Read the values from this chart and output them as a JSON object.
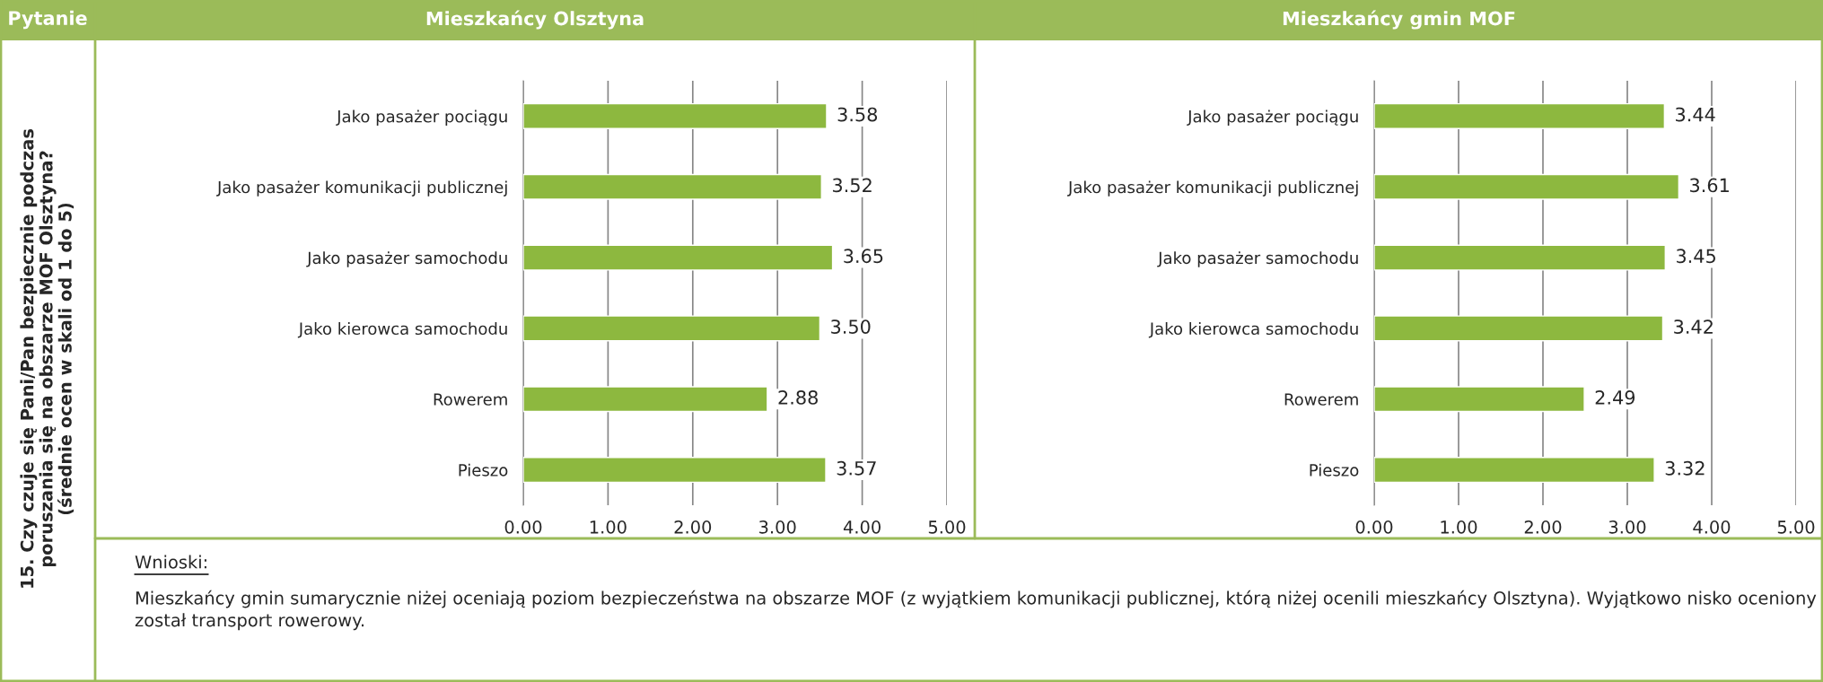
{
  "chart_data": [
    {
      "type": "bar",
      "orientation": "horizontal",
      "title": "Mieszkańcy Olsztyna",
      "categories": [
        "Jako pasażer pociągu",
        "Jako pasażer komunikacji publicznej",
        "Jako pasażer samochodu",
        "Jako kierowca samochodu",
        "Rowerem",
        "Pieszo"
      ],
      "values": [
        3.58,
        3.52,
        3.65,
        3.5,
        2.88,
        3.57
      ],
      "value_labels": [
        "3.58",
        "3.52",
        "3.65",
        "3.50",
        "2.88",
        "3.57"
      ],
      "color": "#8db83f",
      "xlim": [
        0,
        5
      ],
      "xticks": [
        {
          "value": 0,
          "label": "0.00"
        },
        {
          "value": 1,
          "label": "1.00"
        },
        {
          "value": 2,
          "label": "2.00"
        },
        {
          "value": 3,
          "label": "3.00"
        },
        {
          "value": 4,
          "label": "4.00"
        },
        {
          "value": 5,
          "label": "5.00"
        }
      ],
      "grid": "x",
      "legend": false,
      "annotations": [
        "Pytanie",
        "15. Czy czuje się Pani/Pan bezpiecznie podczas\nporuszania się na obszarze MOF Olsztyna?\n(średnie ocen w skali od 1 do 5)",
        "Wnioski:",
        "Mieszkańcy gmin sumarycznie niżej oceniają poziom bezpieczeństwa na obszarze MOF (z wyjątkiem komunikacji publicznej, którą niżej ocenili mieszkańcy Olsztyna). Wyjątkowo nisko oceniony został transport rowerowy."
      ]
    },
    {
      "type": "bar",
      "orientation": "horizontal",
      "title": "Mieszkańcy gmin MOF",
      "categories": [
        "Jako pasażer pociągu",
        "Jako pasażer komunikacji publicznej",
        "Jako pasażer samochodu",
        "Jako kierowca samochodu",
        "Rowerem",
        "Pieszo"
      ],
      "values": [
        3.44,
        3.61,
        3.45,
        3.42,
        2.49,
        3.32
      ],
      "value_labels": [
        "3.44",
        "3.61",
        "3.45",
        "3.42",
        "2.49",
        "3.32"
      ],
      "color": "#8db83f",
      "xlim": [
        0,
        5
      ],
      "xticks": [
        {
          "value": 0,
          "label": "0.00"
        },
        {
          "value": 1,
          "label": "1.00"
        },
        {
          "value": 2,
          "label": "2.00"
        },
        {
          "value": 3,
          "label": "3.00"
        },
        {
          "value": 4,
          "label": "4.00"
        },
        {
          "value": 5,
          "label": "5.00"
        }
      ],
      "grid": "x",
      "legend": false
    }
  ]
}
